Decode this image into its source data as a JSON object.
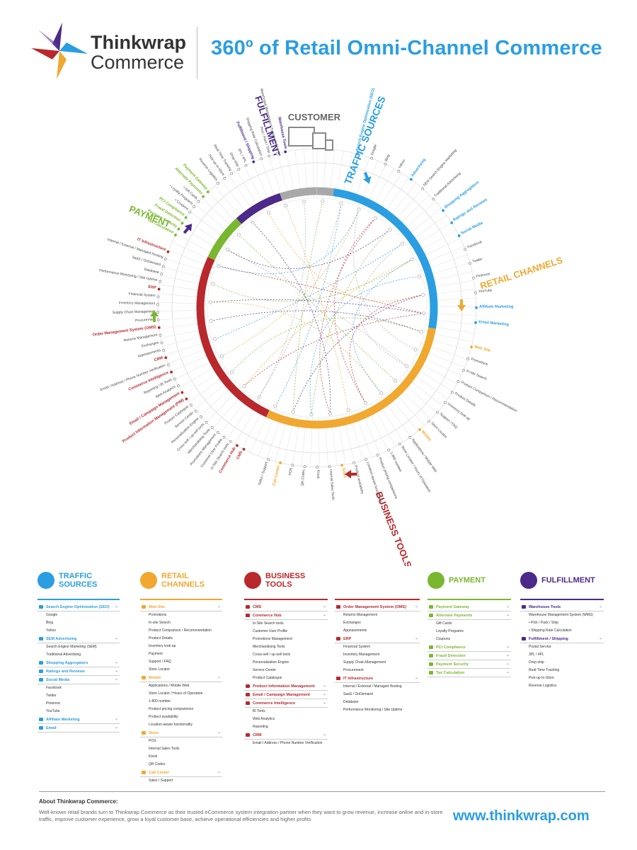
{
  "header": {
    "brand_line1": "Thinkwrap",
    "brand_line2": "Commerce",
    "title": "360º of Retail Omni-Channel Commerce"
  },
  "colors": {
    "blue": "#2a9ee0",
    "orange": "#f0a830",
    "red": "#b8282c",
    "green": "#7ab730",
    "purple": "#4b2a8a",
    "gray": "#a8a8a8"
  },
  "wheel": {
    "customer_label": "CUSTOMER",
    "segments": [
      {
        "name": "TRAFFIC SOURCES",
        "color": "#2a9ee0"
      },
      {
        "name": "RETAIL CHANNELS",
        "color": "#f0a830"
      },
      {
        "name": "BUSINESS TOOLS",
        "color": "#b8282c"
      },
      {
        "name": "PAYMENT",
        "color": "#7ab730"
      },
      {
        "name": "FULFILLMENT",
        "color": "#4b2a8a"
      }
    ],
    "labels_traffic": [
      "Search Engine Optimization (SEO)",
      "Google",
      "Bing",
      "Yahoo",
      "Advertising",
      "SEM Search Engine Marketing",
      "Traditional Advertising",
      "Shopping Aggregators",
      "Ratings and Reviews",
      "Social Media",
      "Facebook",
      "Twitter",
      "Pinterest",
      "YouTube",
      "Affiliate Marketing",
      "Email Marketing"
    ],
    "labels_retail": [
      "Web Site",
      "Promotions",
      "In-site Search",
      "Product Comparison / Recommendation",
      "Product Details",
      "Inventory look-up",
      "Support / FAQ",
      "Store Locator",
      "Mobile",
      "Applications / Mobile Web",
      "Store Locator / Hours of Operation",
      "1-800 number",
      "Product pricing comparisons",
      "Location-aware functionality",
      "Product availability",
      "Store",
      "Internal Sales Tools",
      "Kiosk",
      "QR Codes",
      "POS",
      "Call Center",
      "Sales / Support"
    ],
    "labels_business": [
      "CMS",
      "Commerce Hub",
      "In-Site Search tools",
      "Customer User Profile",
      "Promotions Management",
      "Merchandising Tools",
      "Cross-sell / up-sell tools",
      "Personalization Engine",
      "Service Center",
      "Product Catalogue",
      "Product Information Management (PIM)",
      "Email / Campaign Management",
      "Web Analytics",
      "Reporting / BI Tools",
      "Commerce Intelligence",
      "Email / Address / Phone Number Verification",
      "CRM",
      "Appeasements",
      "Exchanges",
      "Returns Management",
      "Order Management System (OMS)",
      "Procurement",
      "Supply Chain Management",
      "Inventory Management",
      "Financial System",
      "ERP",
      "Performance Monitoring / Site Uptime",
      "Database",
      "SaaS / OnDemand",
      "Internal / External / Managed Hosting",
      "IT Infrastructure"
    ],
    "labels_payment": [
      "Tax Calculation",
      "Payment Security",
      "Fraud Detection",
      "PCI Compliance",
      "• Coupons",
      "• Loyalty Programs",
      "• Gift Cards",
      "Alternate Payments",
      "Payment Gateway"
    ],
    "labels_fulfillment": [
      "Reverse Logistics",
      "Pick-up In-Store",
      "Real-Time Tracking",
      "Drop-ship",
      "3PL / 4PL",
      "Fulfillment / Shipping",
      "Shipping Rate Calculation",
      "Pick / Pack / Ship",
      "Warehouse Management System (WMS)",
      "Warehouse Tools"
    ]
  },
  "columns": [
    {
      "key": "traffic",
      "title_l1": "TRAFFIC",
      "title_l2": "SOURCES",
      "color": "#2a9ee0",
      "icon": "pencil-icon",
      "sections": [
        {
          "name": "Search Engine Optimization (SEO)",
          "items": [
            "Google",
            "Bing",
            "Yahoo"
          ]
        },
        {
          "name": "SEM Advertising",
          "items": [
            "Search Engine Marketing (SEM)",
            "Traditional Advertising"
          ]
        },
        {
          "name": "Shopping Aggregators",
          "items": []
        },
        {
          "name": "Ratings and Reviews",
          "items": []
        },
        {
          "name": "Social Media",
          "items": [
            "Facebook",
            "Twitter",
            "Pinterest",
            "YouTube"
          ]
        },
        {
          "name": "Affiliate Marketing",
          "items": []
        },
        {
          "name": "Email",
          "items": []
        }
      ]
    },
    {
      "key": "retail",
      "title_l1": "RETAIL",
      "title_l2": "CHANNELS",
      "color": "#f0a830",
      "icon": "cart-icon",
      "sections": [
        {
          "name": "Web Site",
          "items": [
            "Promotions",
            "In-site Search",
            "Product Comparison / Recommendation",
            "Product Details",
            "Inventory look-up",
            "Payment",
            "Support / FAQ",
            "Store Locator"
          ]
        },
        {
          "name": "Mobile",
          "items": [
            "Applications / Mobile Web",
            "Store Locator / Hours of Operation",
            "1-800 number",
            "Product pricing comparisons",
            "Product availability",
            "Location-aware functionality"
          ]
        },
        {
          "name": "Store",
          "items": [
            "POS",
            "Internal Sales Tools",
            "Kiosk",
            "QR Codes"
          ]
        },
        {
          "name": "Call Center",
          "items": [
            "Sales / Support"
          ]
        }
      ]
    },
    {
      "key": "business_a",
      "title_l1": "BUSINESS",
      "title_l2": "TOOLS",
      "color": "#b8282c",
      "icon": "tools-icon",
      "sections": [
        {
          "name": "CMS",
          "items": []
        },
        {
          "name": "Commerce Hub",
          "items": [
            "In-Site Search tools",
            "Customer User Profile",
            "Promotions Management",
            "Merchandising Tools",
            "Cross-sell / up-sell tools",
            "Personalization Engine",
            "Service Center",
            "Product Catalogue"
          ]
        },
        {
          "name": "Product Information Management",
          "items": []
        },
        {
          "name": "Email / Campaign Management",
          "items": []
        },
        {
          "name": "Commerce Intelligence",
          "items": [
            "BI Tools",
            "Web Analytics",
            "Reporting"
          ]
        },
        {
          "name": "CRM",
          "items": [
            "Email / Address / Phone Number Verification"
          ]
        }
      ]
    },
    {
      "key": "business_b",
      "title_l1": "",
      "title_l2": "",
      "color": "#b8282c",
      "icon": "",
      "sections": [
        {
          "name": "Order Management System (OMS)",
          "items": [
            "Returns Management",
            "Exchanges",
            "Appeasements"
          ]
        },
        {
          "name": "ERP",
          "items": [
            "Financial System",
            "Inventory Management",
            "Supply Chain Management",
            "Procurement"
          ]
        },
        {
          "name": "IT Infrastructure",
          "items": [
            "Internal / External / Managed Hosting",
            "SaaS / OnDemand",
            "Database",
            "Performance Monitoring / Site Uptime"
          ]
        }
      ]
    },
    {
      "key": "payment",
      "title_l1": "PAYMENT",
      "title_l2": "",
      "color": "#7ab730",
      "icon": "card-icon",
      "sections": [
        {
          "name": "Payment Gateway",
          "items": []
        },
        {
          "name": "Alternate Payments",
          "items": [
            "Gift Cards",
            "Loyalty Programs",
            "Coupons"
          ]
        },
        {
          "name": "PCI Compliance",
          "items": []
        },
        {
          "name": "Fraud Detection",
          "items": []
        },
        {
          "name": "Payment Security",
          "items": []
        },
        {
          "name": "Tax Calculation",
          "items": []
        }
      ]
    },
    {
      "key": "fulfillment",
      "title_l1": "FULFILLMENT",
      "title_l2": "",
      "color": "#4b2a8a",
      "icon": "box-icon",
      "sections": [
        {
          "name": "Warehouse Tools",
          "items": [
            "Warehouse Management System (WMS)",
            "• Pick / Pack / Ship",
            "• Shipping Rate Calculation"
          ]
        },
        {
          "name": "Fulfillment / Shipping",
          "items": [
            "Postal Service",
            "3PL / 4PL",
            "Drop-ship",
            "Real-Time Tracking",
            "Pick-up In-Store",
            "Reverse Logistics"
          ]
        }
      ]
    }
  ],
  "footer": {
    "about_title": "About Thinkwrap Commerce:",
    "about_text": "Well-known retail brands turn to Thinkwrap Commerce as their trusted eCommerce system integration partner when they want to grow revenue, increase online and in-store traffic, improve customer experience, grow a loyal customer base, achieve operational efficiencies and higher profits",
    "url": "www.thinkwrap.com"
  }
}
